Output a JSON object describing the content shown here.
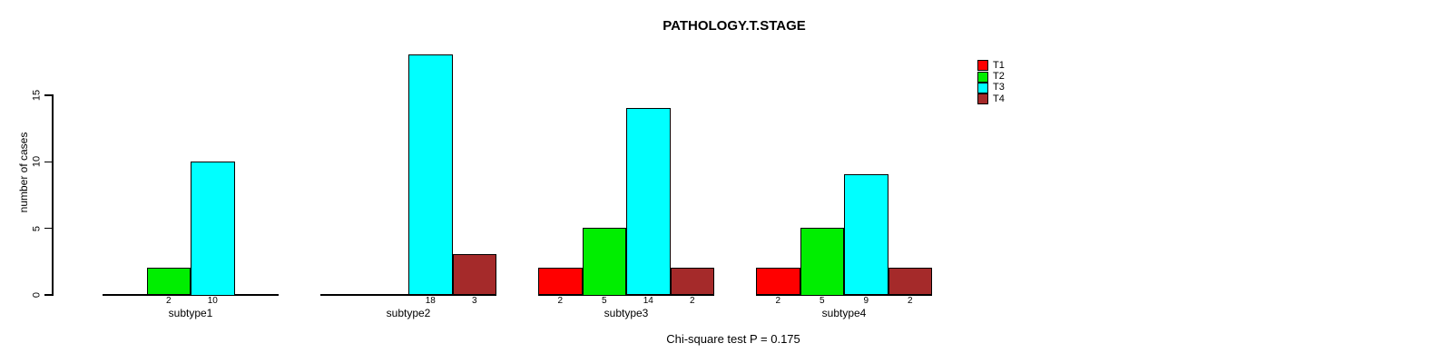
{
  "chart_data": {
    "type": "bar",
    "title": "PATHOLOGY.T.STAGE",
    "ylabel": "number of cases",
    "xlabel": "",
    "footnote": "Chi-square test P = 0.175",
    "categories": [
      "subtype1",
      "subtype2",
      "subtype3",
      "subtype4"
    ],
    "series": [
      {
        "name": "T1",
        "color": "#FF0000",
        "values": [
          0,
          0,
          2,
          2
        ]
      },
      {
        "name": "T2",
        "color": "#00EE00",
        "values": [
          2,
          0,
          5,
          5
        ]
      },
      {
        "name": "T3",
        "color": "#00FFFF",
        "values": [
          10,
          18,
          14,
          9
        ]
      },
      {
        "name": "T4",
        "color": "#A52A2A",
        "values": [
          0,
          3,
          2,
          2
        ]
      }
    ],
    "ylim": [
      0,
      15
    ],
    "yticks": [
      0,
      5,
      10,
      15
    ],
    "axis_color": "#000000",
    "background_color": "#FFFFFF",
    "grid": false,
    "legend_position": "top-right",
    "bar_labels": "nonzero values shown under each bar"
  }
}
